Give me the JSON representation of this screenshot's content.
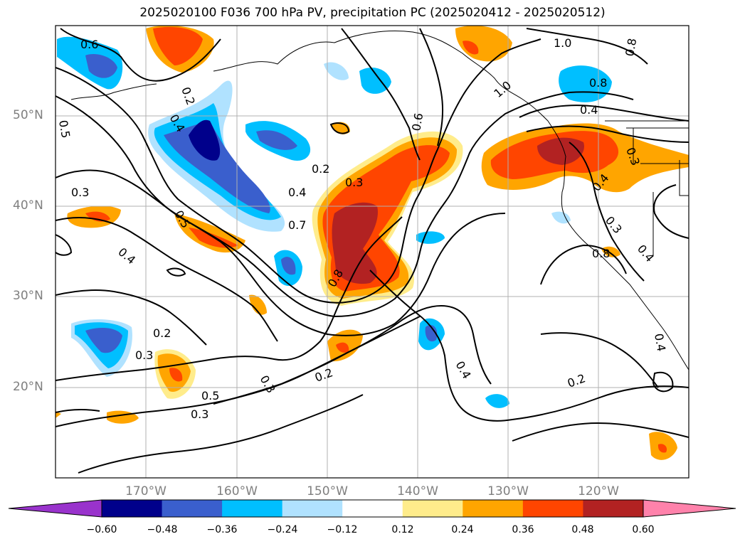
{
  "title": "2025020100 F036 700 hPa PV, precipitation PC (2025020412 - 2025020512)",
  "lat_labels": [
    "50°N",
    "40°N",
    "30°N",
    "20°N"
  ],
  "lon_labels": [
    "170°W",
    "160°W",
    "150°W",
    "140°W",
    "130°W",
    "120°W"
  ],
  "colorbar": {
    "ticks": [
      "−0.60",
      "−0.48",
      "−0.36",
      "−0.24",
      "−0.12",
      "0.12",
      "0.24",
      "0.36",
      "0.48",
      "0.60"
    ],
    "colors": [
      "#9933cc",
      "#00008b",
      "#3a5fcd",
      "#00bfff",
      "#b0e2ff",
      "#ffffff",
      "#ffec8b",
      "#ffa500",
      "#ff4500",
      "#b22222",
      "#ff82ab"
    ]
  },
  "contour_labels": [
    "0.6",
    "0.5",
    "0.3",
    "0.4",
    "0.2",
    "0.4",
    "0.5",
    "0.7",
    "0.3",
    "0.2",
    "0.6",
    "0.8",
    "1.0",
    "0.8",
    "1.0",
    "0.8",
    "0.4",
    "0.3",
    "0.4",
    "0.3",
    "0.4",
    "0.8",
    "0.2",
    "0.3",
    "0.5",
    "0.3",
    "0.2",
    "0.4",
    "0.2",
    "0.4",
    "0.4",
    "0.3"
  ],
  "legend_colors": {
    "neg_dark": "#00008b",
    "neg_mid": "#3a5fcd",
    "neg_light": "#00bfff",
    "neg_pale": "#b0e2ff",
    "pos_pale": "#ffec8b",
    "pos_light": "#ffa500",
    "pos_mid": "#ff4500",
    "pos_dark": "#b22222"
  }
}
